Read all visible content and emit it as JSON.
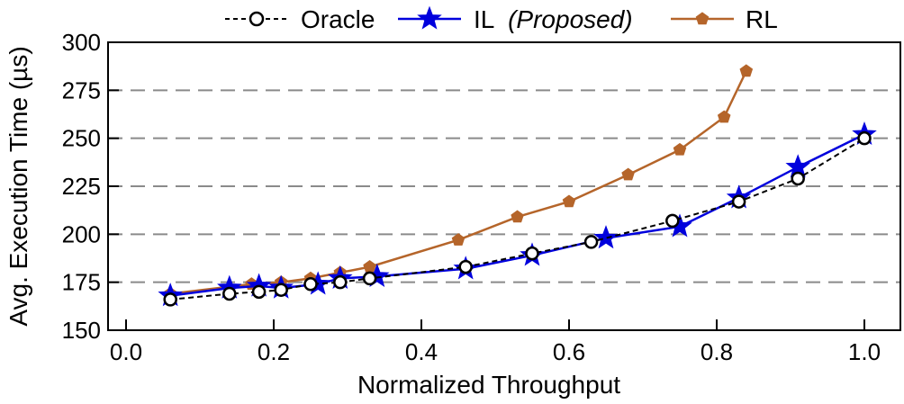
{
  "chart_data": {
    "type": "line",
    "xlabel": "Normalized Throughput",
    "ylabel": "Avg. Execution Time (µs)",
    "xlim": [
      0.0,
      1.0
    ],
    "ylim": [
      150,
      300
    ],
    "x_ticks": [
      0.0,
      0.2,
      0.4,
      0.6,
      0.8,
      1.0
    ],
    "x_tick_labels": [
      "0.0",
      "0.2",
      "0.4",
      "0.6",
      "0.8",
      "1.0"
    ],
    "y_ticks": [
      150,
      175,
      200,
      225,
      250,
      275,
      300
    ],
    "y_tick_labels": [
      "150",
      "175",
      "200",
      "225",
      "250",
      "275",
      "300"
    ],
    "grid": "horizontal dashed",
    "legend_position": "top",
    "series": [
      {
        "name": "Oracle",
        "color": "#000000",
        "marker": "circle",
        "line": "dashed",
        "x": [
          0.06,
          0.14,
          0.18,
          0.21,
          0.25,
          0.29,
          0.33,
          0.46,
          0.55,
          0.63,
          0.74,
          0.83,
          0.91,
          1.0
        ],
        "y": [
          166,
          169,
          170,
          171,
          174,
          175,
          177,
          183,
          190,
          196,
          207,
          217,
          229,
          250
        ]
      },
      {
        "name": "IL",
        "name_suffix": "(Proposed)",
        "color": "#0000dd",
        "marker": "star",
        "line": "solid",
        "x": [
          0.06,
          0.14,
          0.18,
          0.21,
          0.26,
          0.29,
          0.34,
          0.46,
          0.55,
          0.65,
          0.75,
          0.83,
          0.91,
          1.0
        ],
        "y": [
          168,
          172,
          173,
          172,
          174,
          177,
          178,
          182,
          189,
          198,
          204,
          219,
          235,
          252
        ]
      },
      {
        "name": "RL",
        "color": "#b5652a",
        "marker": "pentagon",
        "line": "solid",
        "x": [
          0.06,
          0.17,
          0.21,
          0.25,
          0.29,
          0.33,
          0.45,
          0.53,
          0.6,
          0.68,
          0.75,
          0.81,
          0.84
        ],
        "y": [
          169,
          174,
          175,
          177,
          180,
          183,
          197,
          209,
          217,
          231,
          244,
          261,
          285
        ]
      }
    ]
  }
}
